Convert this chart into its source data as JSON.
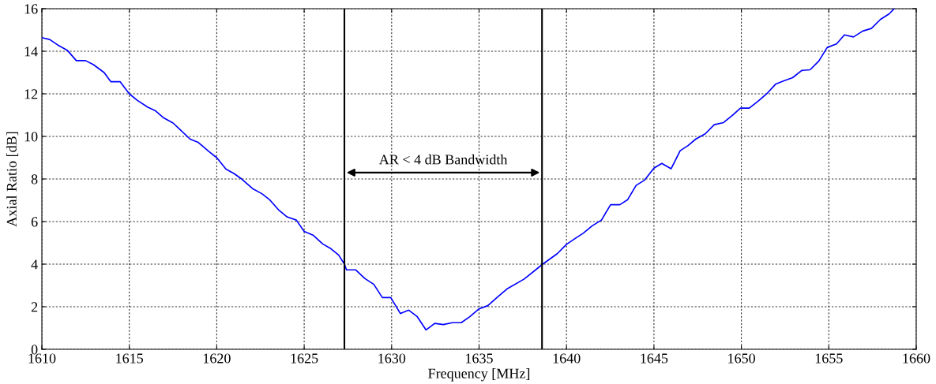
{
  "chart_data": {
    "type": "line",
    "xlabel": "Frequency [MHz]",
    "ylabel": "Axial Ratio [dB]",
    "xlim": [
      1610,
      1660
    ],
    "xticks": [
      1610,
      1615,
      1620,
      1625,
      1630,
      1635,
      1640,
      1645,
      1650,
      1655,
      1660
    ],
    "ylim": [
      0,
      16
    ],
    "yticks": [
      0,
      2,
      4,
      6,
      8,
      10,
      12,
      14,
      16
    ],
    "grid": true,
    "line_style": "solid",
    "marker": "none",
    "series": [
      {
        "color": "#0000ff",
        "x": [
          1610,
          1610.45,
          1610.9,
          1611.45,
          1611.97,
          1612.5,
          1612.95,
          1613.56,
          1613.94,
          1614.47,
          1615,
          1615.45,
          1616.06,
          1616.5,
          1616.97,
          1617.5,
          1617.88,
          1618.48,
          1618.94,
          1619.55,
          1620,
          1620.53,
          1620.98,
          1621.44,
          1622.05,
          1622.58,
          1623.03,
          1623.56,
          1624.02,
          1624.55,
          1625,
          1625.53,
          1626.06,
          1626.52,
          1626.97,
          1627.3,
          1627.42,
          1627.95,
          1628.48,
          1628.98,
          1629.47,
          1629.95,
          1630.5,
          1630.98,
          1631.47,
          1631.97,
          1632.47,
          1632.95,
          1633.48,
          1633.98,
          1634.47,
          1635,
          1635.5,
          1636.06,
          1636.59,
          1637.58,
          1638.64,
          1639.47,
          1640,
          1640.45,
          1640.95,
          1641.47,
          1642,
          1642.52,
          1643.05,
          1643.5,
          1643.98,
          1644.47,
          1645,
          1645.45,
          1645.98,
          1646.5,
          1646.95,
          1647.4,
          1647.93,
          1648.45,
          1648.98,
          1649.47,
          1649.95,
          1650.45,
          1650.98,
          1651.46,
          1651.95,
          1652.43,
          1652.93,
          1653.45,
          1653.93,
          1654.43,
          1654.91,
          1655.44,
          1655.89,
          1656.41,
          1656.94,
          1657.43,
          1657.96,
          1658.44,
          1658.74
        ],
        "values": [
          14.64,
          14.55,
          14.3,
          14.05,
          13.56,
          13.56,
          13.37,
          13.0,
          12.57,
          12.57,
          12.0,
          11.7,
          11.37,
          11.2,
          10.87,
          10.63,
          10.34,
          9.87,
          9.72,
          9.29,
          9.0,
          8.46,
          8.26,
          7.99,
          7.55,
          7.31,
          7.02,
          6.53,
          6.22,
          6.07,
          5.54,
          5.35,
          4.95,
          4.73,
          4.43,
          4.0,
          3.73,
          3.73,
          3.32,
          3.05,
          2.43,
          2.43,
          1.68,
          1.84,
          1.53,
          0.91,
          1.22,
          1.16,
          1.25,
          1.25,
          1.53,
          1.9,
          2.05,
          2.46,
          2.83,
          3.3,
          4.0,
          4.49,
          4.93,
          5.18,
          5.45,
          5.8,
          6.07,
          6.79,
          6.79,
          7.03,
          7.7,
          7.95,
          8.51,
          8.73,
          8.48,
          9.33,
          9.57,
          9.88,
          10.12,
          10.55,
          10.65,
          10.98,
          11.33,
          11.33,
          11.67,
          12.01,
          12.45,
          12.61,
          12.76,
          13.1,
          13.13,
          13.54,
          14.18,
          14.34,
          14.77,
          14.67,
          14.95,
          15.07,
          15.5,
          15.75,
          16.0
        ]
      }
    ],
    "ref_lines": [
      {
        "axis": "x",
        "value": 1627.3,
        "color": "#000000",
        "line_style": "solid"
      },
      {
        "axis": "x",
        "value": 1638.6,
        "color": "#000000",
        "line_style": "solid"
      }
    ],
    "annotations": [
      "AR < 4 dB Bandwidth"
    ]
  }
}
